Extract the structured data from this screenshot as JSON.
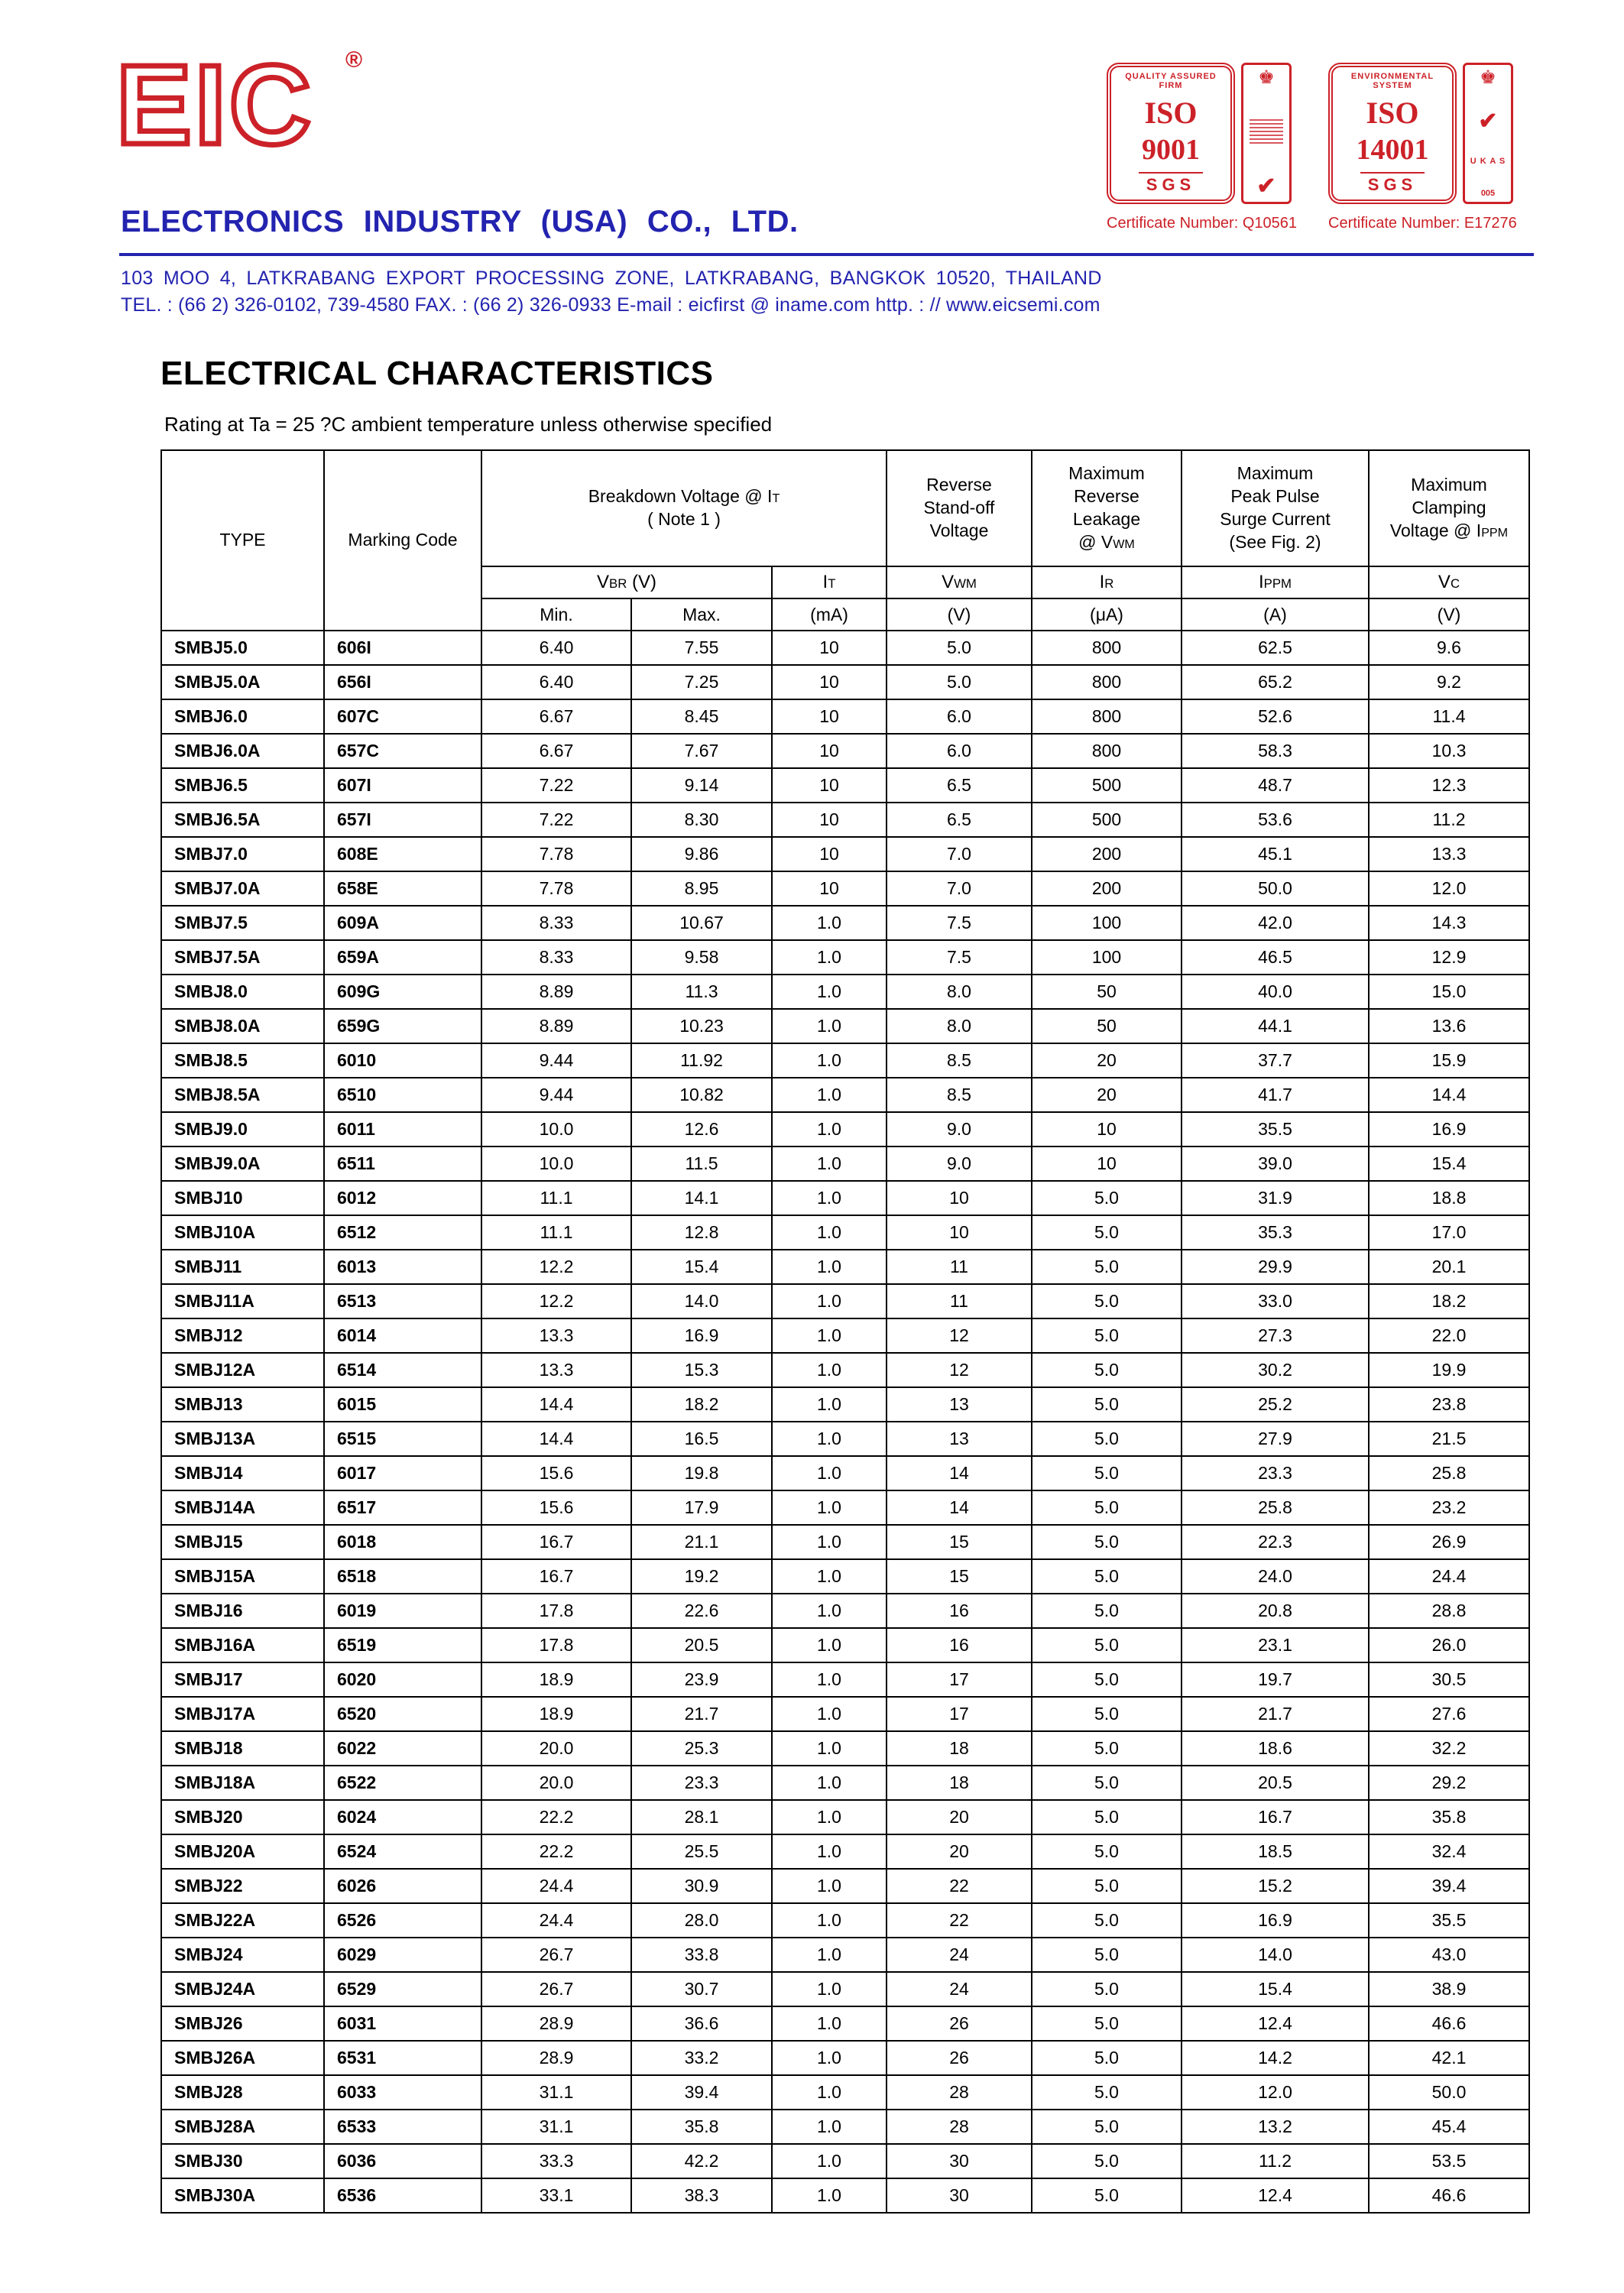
{
  "header": {
    "logo_text": "EIC",
    "registered_mark": "®",
    "company_name": "ELECTRONICS  INDUSTRY  (USA)  CO., LTD.",
    "address_line": "103  MOO 4,  LATKRABANG EXPORT PROCESSING ZONE,  LATKRABANG,  BANGKOK  10520,  THAILAND",
    "contact_line": "TEL. : (66 2) 326-0102,  739-4580    FAX. : (66 2) 326-0933   E-mail : eicfirst @ iname.com   http. : // www.eicsemi.com",
    "brand_red": "#cc2128",
    "brand_blue": "#2323b0",
    "certifications": [
      {
        "arc_text": "QUALITY ASSURED FIRM",
        "iso": "ISO",
        "standard": "9001",
        "registrar": "SGS",
        "crown": "♚",
        "check": "✔",
        "cert_number": "Certificate Number: Q10561"
      },
      {
        "arc_text": "ENVIRONMENTAL SYSTEM",
        "iso": "ISO",
        "standard": "14001",
        "registrar": "SGS",
        "crown": "♚",
        "check": "✔",
        "ukas": "U K A S",
        "ukas_number": "005",
        "cert_number": "Certificate Number: E17276"
      }
    ]
  },
  "section": {
    "title": "ELECTRICAL CHARACTERISTICS",
    "subtitle": "Rating at Ta = 25 ?C ambient temperature unless otherwise specified"
  },
  "table": {
    "col_type": "TYPE",
    "col_marking": "Marking Code",
    "groups": {
      "breakdown": {
        "lines": [
          [
            {
              "t": "Breakdown Voltage @  I"
            },
            {
              "t": "T",
              "sub": true
            }
          ],
          [
            {
              "t": "( Note 1 )"
            }
          ]
        ]
      },
      "standoff": {
        "lines": [
          [
            {
              "t": "Reverse"
            }
          ],
          [
            {
              "t": "Stand-off"
            }
          ],
          [
            {
              "t": "Voltage"
            }
          ]
        ]
      },
      "leakage": {
        "lines": [
          [
            {
              "t": "Maximum"
            }
          ],
          [
            {
              "t": "Reverse"
            }
          ],
          [
            {
              "t": "Leakage"
            }
          ],
          [
            {
              "t": "@ V"
            },
            {
              "t": "WM",
              "sub": true
            }
          ]
        ]
      },
      "surge": {
        "lines": [
          [
            {
              "t": "Maximum"
            }
          ],
          [
            {
              "t": "Peak Pulse"
            }
          ],
          [
            {
              "t": "Surge Current"
            }
          ],
          [
            {
              "t": "(See Fig. 2)"
            }
          ]
        ]
      },
      "clamping": {
        "lines": [
          [
            {
              "t": "Maximum"
            }
          ],
          [
            {
              "t": "Clamping"
            }
          ],
          [
            {
              "t": "Voltage @ I"
            },
            {
              "t": "PPM",
              "sub": true
            }
          ]
        ]
      }
    },
    "symbols": {
      "vbr": [
        {
          "t": "V"
        },
        {
          "t": "BR",
          "sub": true
        },
        {
          "t": "  (V)"
        }
      ],
      "it": [
        {
          "t": "I"
        },
        {
          "t": "T",
          "sub": true
        }
      ],
      "vwm": [
        {
          "t": "V"
        },
        {
          "t": "WM",
          "sub": true
        }
      ],
      "ir": [
        {
          "t": "I"
        },
        {
          "t": "R",
          "sub": true
        }
      ],
      "ippm": [
        {
          "t": "I"
        },
        {
          "t": "PPM",
          "sub": true
        }
      ],
      "vc": [
        {
          "t": "V"
        },
        {
          "t": "C",
          "sub": true
        }
      ]
    },
    "units": {
      "min": "Min.",
      "max": "Max.",
      "it": "(mA)",
      "vwm": "(V)",
      "ir": "(μA)",
      "ippm": "(A)",
      "vc": "(V)"
    },
    "rows": [
      [
        "SMBJ5.0",
        "606I",
        "6.40",
        "7.55",
        "10",
        "5.0",
        "800",
        "62.5",
        "9.6"
      ],
      [
        "SMBJ5.0A",
        "656I",
        "6.40",
        "7.25",
        "10",
        "5.0",
        "800",
        "65.2",
        "9.2"
      ],
      [
        "SMBJ6.0",
        "607C",
        "6.67",
        "8.45",
        "10",
        "6.0",
        "800",
        "52.6",
        "11.4"
      ],
      [
        "SMBJ6.0A",
        "657C",
        "6.67",
        "7.67",
        "10",
        "6.0",
        "800",
        "58.3",
        "10.3"
      ],
      [
        "SMBJ6.5",
        "607I",
        "7.22",
        "9.14",
        "10",
        "6.5",
        "500",
        "48.7",
        "12.3"
      ],
      [
        "SMBJ6.5A",
        "657I",
        "7.22",
        "8.30",
        "10",
        "6.5",
        "500",
        "53.6",
        "11.2"
      ],
      [
        "SMBJ7.0",
        "608E",
        "7.78",
        "9.86",
        "10",
        "7.0",
        "200",
        "45.1",
        "13.3"
      ],
      [
        "SMBJ7.0A",
        "658E",
        "7.78",
        "8.95",
        "10",
        "7.0",
        "200",
        "50.0",
        "12.0"
      ],
      [
        "SMBJ7.5",
        "609A",
        "8.33",
        "10.67",
        "1.0",
        "7.5",
        "100",
        "42.0",
        "14.3"
      ],
      [
        "SMBJ7.5A",
        "659A",
        "8.33",
        "9.58",
        "1.0",
        "7.5",
        "100",
        "46.5",
        "12.9"
      ],
      [
        "SMBJ8.0",
        "609G",
        "8.89",
        "11.3",
        "1.0",
        "8.0",
        "50",
        "40.0",
        "15.0"
      ],
      [
        "SMBJ8.0A",
        "659G",
        "8.89",
        "10.23",
        "1.0",
        "8.0",
        "50",
        "44.1",
        "13.6"
      ],
      [
        "SMBJ8.5",
        "6010",
        "9.44",
        "11.92",
        "1.0",
        "8.5",
        "20",
        "37.7",
        "15.9"
      ],
      [
        "SMBJ8.5A",
        "6510",
        "9.44",
        "10.82",
        "1.0",
        "8.5",
        "20",
        "41.7",
        "14.4"
      ],
      [
        "SMBJ9.0",
        "6011",
        "10.0",
        "12.6",
        "1.0",
        "9.0",
        "10",
        "35.5",
        "16.9"
      ],
      [
        "SMBJ9.0A",
        "6511",
        "10.0",
        "11.5",
        "1.0",
        "9.0",
        "10",
        "39.0",
        "15.4"
      ],
      [
        "SMBJ10",
        "6012",
        "11.1",
        "14.1",
        "1.0",
        "10",
        "5.0",
        "31.9",
        "18.8"
      ],
      [
        "SMBJ10A",
        "6512",
        "11.1",
        "12.8",
        "1.0",
        "10",
        "5.0",
        "35.3",
        "17.0"
      ],
      [
        "SMBJ11",
        "6013",
        "12.2",
        "15.4",
        "1.0",
        "11",
        "5.0",
        "29.9",
        "20.1"
      ],
      [
        "SMBJ11A",
        "6513",
        "12.2",
        "14.0",
        "1.0",
        "11",
        "5.0",
        "33.0",
        "18.2"
      ],
      [
        "SMBJ12",
        "6014",
        "13.3",
        "16.9",
        "1.0",
        "12",
        "5.0",
        "27.3",
        "22.0"
      ],
      [
        "SMBJ12A",
        "6514",
        "13.3",
        "15.3",
        "1.0",
        "12",
        "5.0",
        "30.2",
        "19.9"
      ],
      [
        "SMBJ13",
        "6015",
        "14.4",
        "18.2",
        "1.0",
        "13",
        "5.0",
        "25.2",
        "23.8"
      ],
      [
        "SMBJ13A",
        "6515",
        "14.4",
        "16.5",
        "1.0",
        "13",
        "5.0",
        "27.9",
        "21.5"
      ],
      [
        "SMBJ14",
        "6017",
        "15.6",
        "19.8",
        "1.0",
        "14",
        "5.0",
        "23.3",
        "25.8"
      ],
      [
        "SMBJ14A",
        "6517",
        "15.6",
        "17.9",
        "1.0",
        "14",
        "5.0",
        "25.8",
        "23.2"
      ],
      [
        "SMBJ15",
        "6018",
        "16.7",
        "21.1",
        "1.0",
        "15",
        "5.0",
        "22.3",
        "26.9"
      ],
      [
        "SMBJ15A",
        "6518",
        "16.7",
        "19.2",
        "1.0",
        "15",
        "5.0",
        "24.0",
        "24.4"
      ],
      [
        "SMBJ16",
        "6019",
        "17.8",
        "22.6",
        "1.0",
        "16",
        "5.0",
        "20.8",
        "28.8"
      ],
      [
        "SMBJ16A",
        "6519",
        "17.8",
        "20.5",
        "1.0",
        "16",
        "5.0",
        "23.1",
        "26.0"
      ],
      [
        "SMBJ17",
        "6020",
        "18.9",
        "23.9",
        "1.0",
        "17",
        "5.0",
        "19.7",
        "30.5"
      ],
      [
        "SMBJ17A",
        "6520",
        "18.9",
        "21.7",
        "1.0",
        "17",
        "5.0",
        "21.7",
        "27.6"
      ],
      [
        "SMBJ18",
        "6022",
        "20.0",
        "25.3",
        "1.0",
        "18",
        "5.0",
        "18.6",
        "32.2"
      ],
      [
        "SMBJ18A",
        "6522",
        "20.0",
        "23.3",
        "1.0",
        "18",
        "5.0",
        "20.5",
        "29.2"
      ],
      [
        "SMBJ20",
        "6024",
        "22.2",
        "28.1",
        "1.0",
        "20",
        "5.0",
        "16.7",
        "35.8"
      ],
      [
        "SMBJ20A",
        "6524",
        "22.2",
        "25.5",
        "1.0",
        "20",
        "5.0",
        "18.5",
        "32.4"
      ],
      [
        "SMBJ22",
        "6026",
        "24.4",
        "30.9",
        "1.0",
        "22",
        "5.0",
        "15.2",
        "39.4"
      ],
      [
        "SMBJ22A",
        "6526",
        "24.4",
        "28.0",
        "1.0",
        "22",
        "5.0",
        "16.9",
        "35.5"
      ],
      [
        "SMBJ24",
        "6029",
        "26.7",
        "33.8",
        "1.0",
        "24",
        "5.0",
        "14.0",
        "43.0"
      ],
      [
        "SMBJ24A",
        "6529",
        "26.7",
        "30.7",
        "1.0",
        "24",
        "5.0",
        "15.4",
        "38.9"
      ],
      [
        "SMBJ26",
        "6031",
        "28.9",
        "36.6",
        "1.0",
        "26",
        "5.0",
        "12.4",
        "46.6"
      ],
      [
        "SMBJ26A",
        "6531",
        "28.9",
        "33.2",
        "1.0",
        "26",
        "5.0",
        "14.2",
        "42.1"
      ],
      [
        "SMBJ28",
        "6033",
        "31.1",
        "39.4",
        "1.0",
        "28",
        "5.0",
        "12.0",
        "50.0"
      ],
      [
        "SMBJ28A",
        "6533",
        "31.1",
        "35.8",
        "1.0",
        "28",
        "5.0",
        "13.2",
        "45.4"
      ],
      [
        "SMBJ30",
        "6036",
        "33.3",
        "42.2",
        "1.0",
        "30",
        "5.0",
        "11.2",
        "53.5"
      ],
      [
        "SMBJ30A",
        "6536",
        "33.1",
        "38.3",
        "1.0",
        "30",
        "5.0",
        "12.4",
        "46.6"
      ]
    ]
  }
}
